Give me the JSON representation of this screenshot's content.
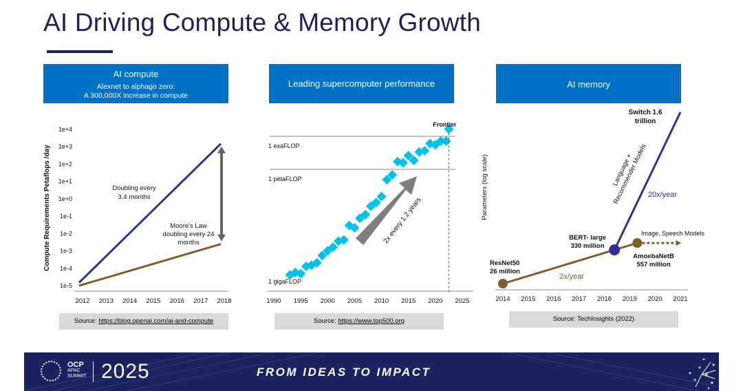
{
  "page": {
    "title": "AI Driving Compute & Memory Growth"
  },
  "panels": {
    "compute": {
      "header_title": "AI compute",
      "header_sub1": "Alexnet to alphago zero:",
      "header_sub2": "A 300,000X increase in compute",
      "source_prefix": "Source: ",
      "source_link": "https://blog.openai.com/ai-and-compute"
    },
    "supercomputer": {
      "header_title": "Leading supercomputer performance",
      "source_prefix": "Source: ",
      "source_link": "https://www.top500.org"
    },
    "memory": {
      "header_title": "AI memory",
      "source_text": "Source: TechInsights (2022)"
    }
  },
  "chart_data": [
    {
      "type": "line",
      "ylabel": "Compute Requirements Petaflops /day",
      "yscale": "log",
      "x_ticks": [
        "2012",
        "2013",
        "2014",
        "2015",
        "2016",
        "2017",
        "2018"
      ],
      "y_ticks": [
        "1e-5",
        "1e-4",
        "1e-3",
        "1e-2",
        "1e-1",
        "1e+0",
        "1e+1",
        "1e+2",
        "1e+3",
        "1e+4"
      ],
      "ylim": [
        1e-05,
        10000.0
      ],
      "series": [
        {
          "x": [
            2012,
            2018
          ],
          "y": [
            1.5e-05,
            1500
          ],
          "color": "#2e3192"
        },
        {
          "x": [
            2012,
            2018
          ],
          "y": [
            1e-05,
            0.0025
          ],
          "color": "#7b5e2a"
        }
      ],
      "annotations": [
        {
          "lines": [
            "Doubling every",
            "3.4 months"
          ]
        },
        {
          "lines": [
            "Moore's Law",
            "doubling every 24",
            "months"
          ]
        }
      ],
      "range_arrow": {
        "from": 0.0025,
        "to": 1500,
        "color": "#666666"
      }
    },
    {
      "type": "scatter",
      "yscale": "log",
      "x_ticks": [
        "1990",
        "1995",
        "2000",
        "2005",
        "2010",
        "2015",
        "2020",
        "2025"
      ],
      "xlim": [
        1990,
        2025
      ],
      "reference_lines": [
        "1 exaFLOP",
        "1 petaFLOP",
        "1 gigaFLOP"
      ],
      "points": [
        [
          1993,
          0.5
        ],
        [
          1994,
          0.7
        ],
        [
          1995,
          0.6
        ],
        [
          1996,
          1.2
        ],
        [
          1997,
          1.3
        ],
        [
          1998,
          1.5
        ],
        [
          1999,
          2.1
        ],
        [
          2000,
          2.5
        ],
        [
          2001,
          2.8
        ],
        [
          2002,
          3.3
        ],
        [
          2003,
          3.4
        ],
        [
          2004,
          4.6
        ],
        [
          2005,
          4.4
        ],
        [
          2006,
          5.2
        ],
        [
          2007,
          5.5
        ],
        [
          2008,
          6.2
        ],
        [
          2009,
          6.5
        ],
        [
          2010,
          7.0
        ],
        [
          2011,
          8.4
        ],
        [
          2012,
          8.8
        ],
        [
          2013,
          9.9
        ],
        [
          2014,
          9.8
        ],
        [
          2015,
          10.4
        ],
        [
          2016,
          10.0
        ],
        [
          2017,
          10.7
        ],
        [
          2018,
          10.8
        ],
        [
          2019,
          11.4
        ],
        [
          2020,
          11.3
        ],
        [
          2021,
          11.6
        ],
        [
          2022,
          11.6
        ]
      ],
      "highlight": {
        "label": "Frontier",
        "x": 2022.5,
        "y": 12.6
      },
      "trend_label": "2x every 1.2 years",
      "color": "#00c2e8"
    },
    {
      "type": "line",
      "ylabel": "Parameters (log scale)",
      "yscale": "log",
      "x_ticks": [
        "2014",
        "2015",
        "2016",
        "2017",
        "2018",
        "2019",
        "2020",
        "2021"
      ],
      "series": [
        {
          "name": "",
          "x": [
            2014,
            2018.4,
            2019.3
          ],
          "color": "#7b5e2a"
        },
        {
          "name": "",
          "x": [
            2018.4,
            2021
          ],
          "color": "#2e3192"
        }
      ],
      "points": [
        {
          "label_lines": [
            "ResNet50",
            "26 million"
          ],
          "x": 2014
        },
        {
          "label_lines": [
            "BERT- large",
            "330 million"
          ],
          "x": 2018.4
        },
        {
          "label_lines": [
            "AmoebaNetB",
            "557 million"
          ],
          "x": 2019.3
        },
        {
          "label_lines": [
            "Switch 1.6",
            "trillion"
          ],
          "x": 2021
        }
      ],
      "annotations": {
        "language_models": [
          "Language +",
          "Recommender Models"
        ],
        "rate_fast": "20x/year",
        "rate_slow": "2x/year",
        "image_speech": "Image, Speech Models"
      }
    }
  ],
  "footer": {
    "ocp": "OCP",
    "apac": "APAC",
    "summit": "SUMMIT",
    "year": "2025",
    "tagline": "FROM IDEAS TO IMPACT",
    "bg_color": "#1b2260"
  }
}
